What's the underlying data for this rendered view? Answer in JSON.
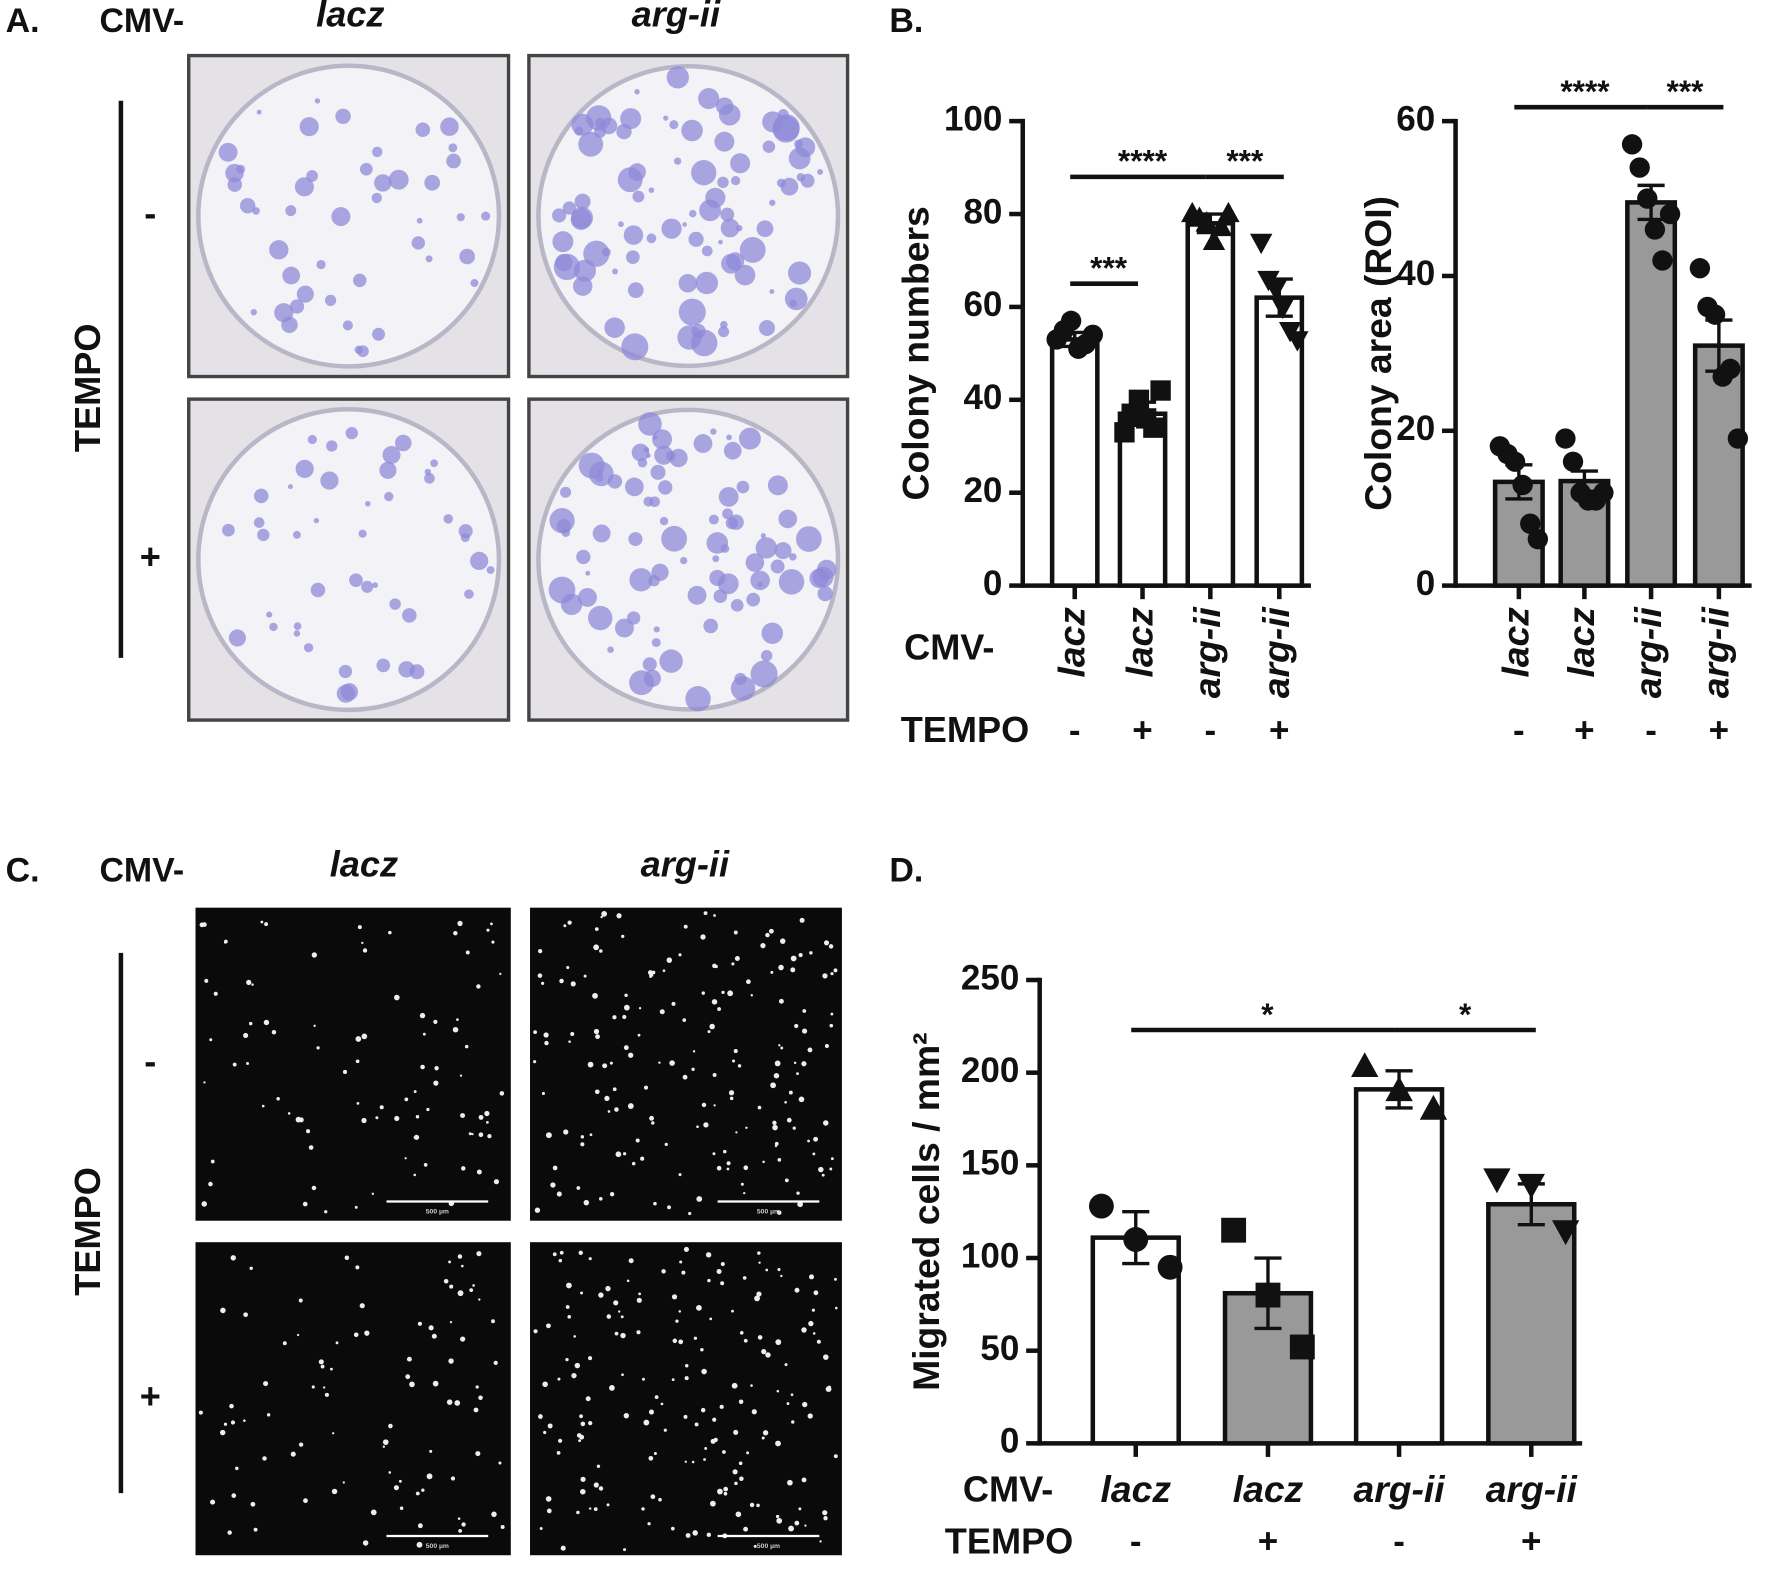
{
  "panel_a": {
    "label": "A.",
    "cmv": "CMV-",
    "columns": [
      "lacz",
      "arg-ii"
    ],
    "tempo": "TEMPO",
    "rows": [
      "-",
      "+"
    ]
  },
  "panel_b": {
    "label": "B."
  },
  "panel_c": {
    "label": "C.",
    "cmv": "CMV-",
    "columns": [
      "lacz",
      "arg-ii"
    ],
    "tempo": "TEMPO",
    "rows": [
      "-",
      "+"
    ],
    "scale_bar": "500 µm"
  },
  "panel_d": {
    "label": "D."
  },
  "chart_data": [
    {
      "type": "bar",
      "ylabel": "Colony numbers",
      "categories": [
        "lacz",
        "lacz",
        "arg-ii",
        "arg-ii"
      ],
      "tempo": [
        "-",
        "+",
        "-",
        "+"
      ],
      "row_labels": [
        "CMV-",
        "TEMPO"
      ],
      "values": [
        53,
        37,
        78,
        62
      ],
      "errors": [
        1.5,
        2.5,
        2,
        4
      ],
      "points": [
        [
          53,
          55,
          57,
          51,
          52,
          54
        ],
        [
          33,
          37,
          40,
          36,
          34,
          42
        ],
        [
          80,
          79,
          78,
          74,
          77,
          80
        ],
        [
          74,
          66,
          64,
          60,
          55,
          53
        ]
      ],
      "markers": [
        "circle",
        "square",
        "triangle-up",
        "triangle-down"
      ],
      "colors": [
        "#ffffff",
        "#ffffff",
        "#ffffff",
        "#ffffff"
      ],
      "ylim": [
        0,
        100
      ],
      "yticks": [
        0,
        20,
        40,
        60,
        80,
        100
      ],
      "significance": [
        {
          "label": "***",
          "between": [
            0,
            1
          ]
        },
        {
          "label": "****",
          "between": [
            0,
            2
          ]
        },
        {
          "label": "***",
          "between": [
            2,
            3
          ]
        }
      ]
    },
    {
      "type": "bar",
      "ylabel": "Colony area (ROI)",
      "categories": [
        "lacz",
        "lacz",
        "arg-ii",
        "arg-ii"
      ],
      "tempo": [
        "-",
        "+",
        "-",
        "+"
      ],
      "values": [
        13.4,
        13.5,
        49.5,
        31
      ],
      "errors": [
        2.2,
        1.3,
        2.2,
        3.3
      ],
      "points": [
        [
          18,
          17,
          16,
          13,
          8,
          6
        ],
        [
          19,
          16,
          12,
          11,
          11,
          12
        ],
        [
          57,
          54,
          50,
          46,
          42,
          48
        ],
        [
          41,
          36,
          35,
          27,
          28,
          19
        ]
      ],
      "markers": [
        "circle",
        "circle",
        "circle",
        "circle"
      ],
      "colors": [
        "#999999",
        "#999999",
        "#999999",
        "#999999"
      ],
      "ylim": [
        0,
        60
      ],
      "yticks": [
        0,
        20,
        40,
        60
      ],
      "significance": [
        {
          "label": "****",
          "between": [
            0,
            2
          ]
        },
        {
          "label": "***",
          "between": [
            2,
            3
          ]
        }
      ]
    },
    {
      "type": "bar",
      "ylabel": "Migrated cells / mm²",
      "categories": [
        "lacz",
        "lacz",
        "arg-ii",
        "arg-ii"
      ],
      "tempo": [
        "-",
        "+",
        "-",
        "+"
      ],
      "row_labels": [
        "CMV-",
        "TEMPO"
      ],
      "values": [
        111,
        81,
        191,
        129
      ],
      "errors": [
        14,
        19,
        10,
        11
      ],
      "points": [
        [
          128,
          110,
          95
        ],
        [
          115,
          80,
          52
        ],
        [
          203,
          190,
          180
        ],
        [
          143,
          140,
          115
        ]
      ],
      "markers": [
        "circle",
        "square",
        "triangle-up",
        "triangle-down"
      ],
      "colors": [
        "#ffffff",
        "#999999",
        "#ffffff",
        "#999999"
      ],
      "ylim": [
        0,
        250
      ],
      "yticks": [
        0,
        50,
        100,
        150,
        200,
        250
      ],
      "significance": [
        {
          "label": "*",
          "between": [
            0,
            2
          ]
        },
        {
          "label": "*",
          "between": [
            2,
            3
          ]
        }
      ]
    }
  ]
}
